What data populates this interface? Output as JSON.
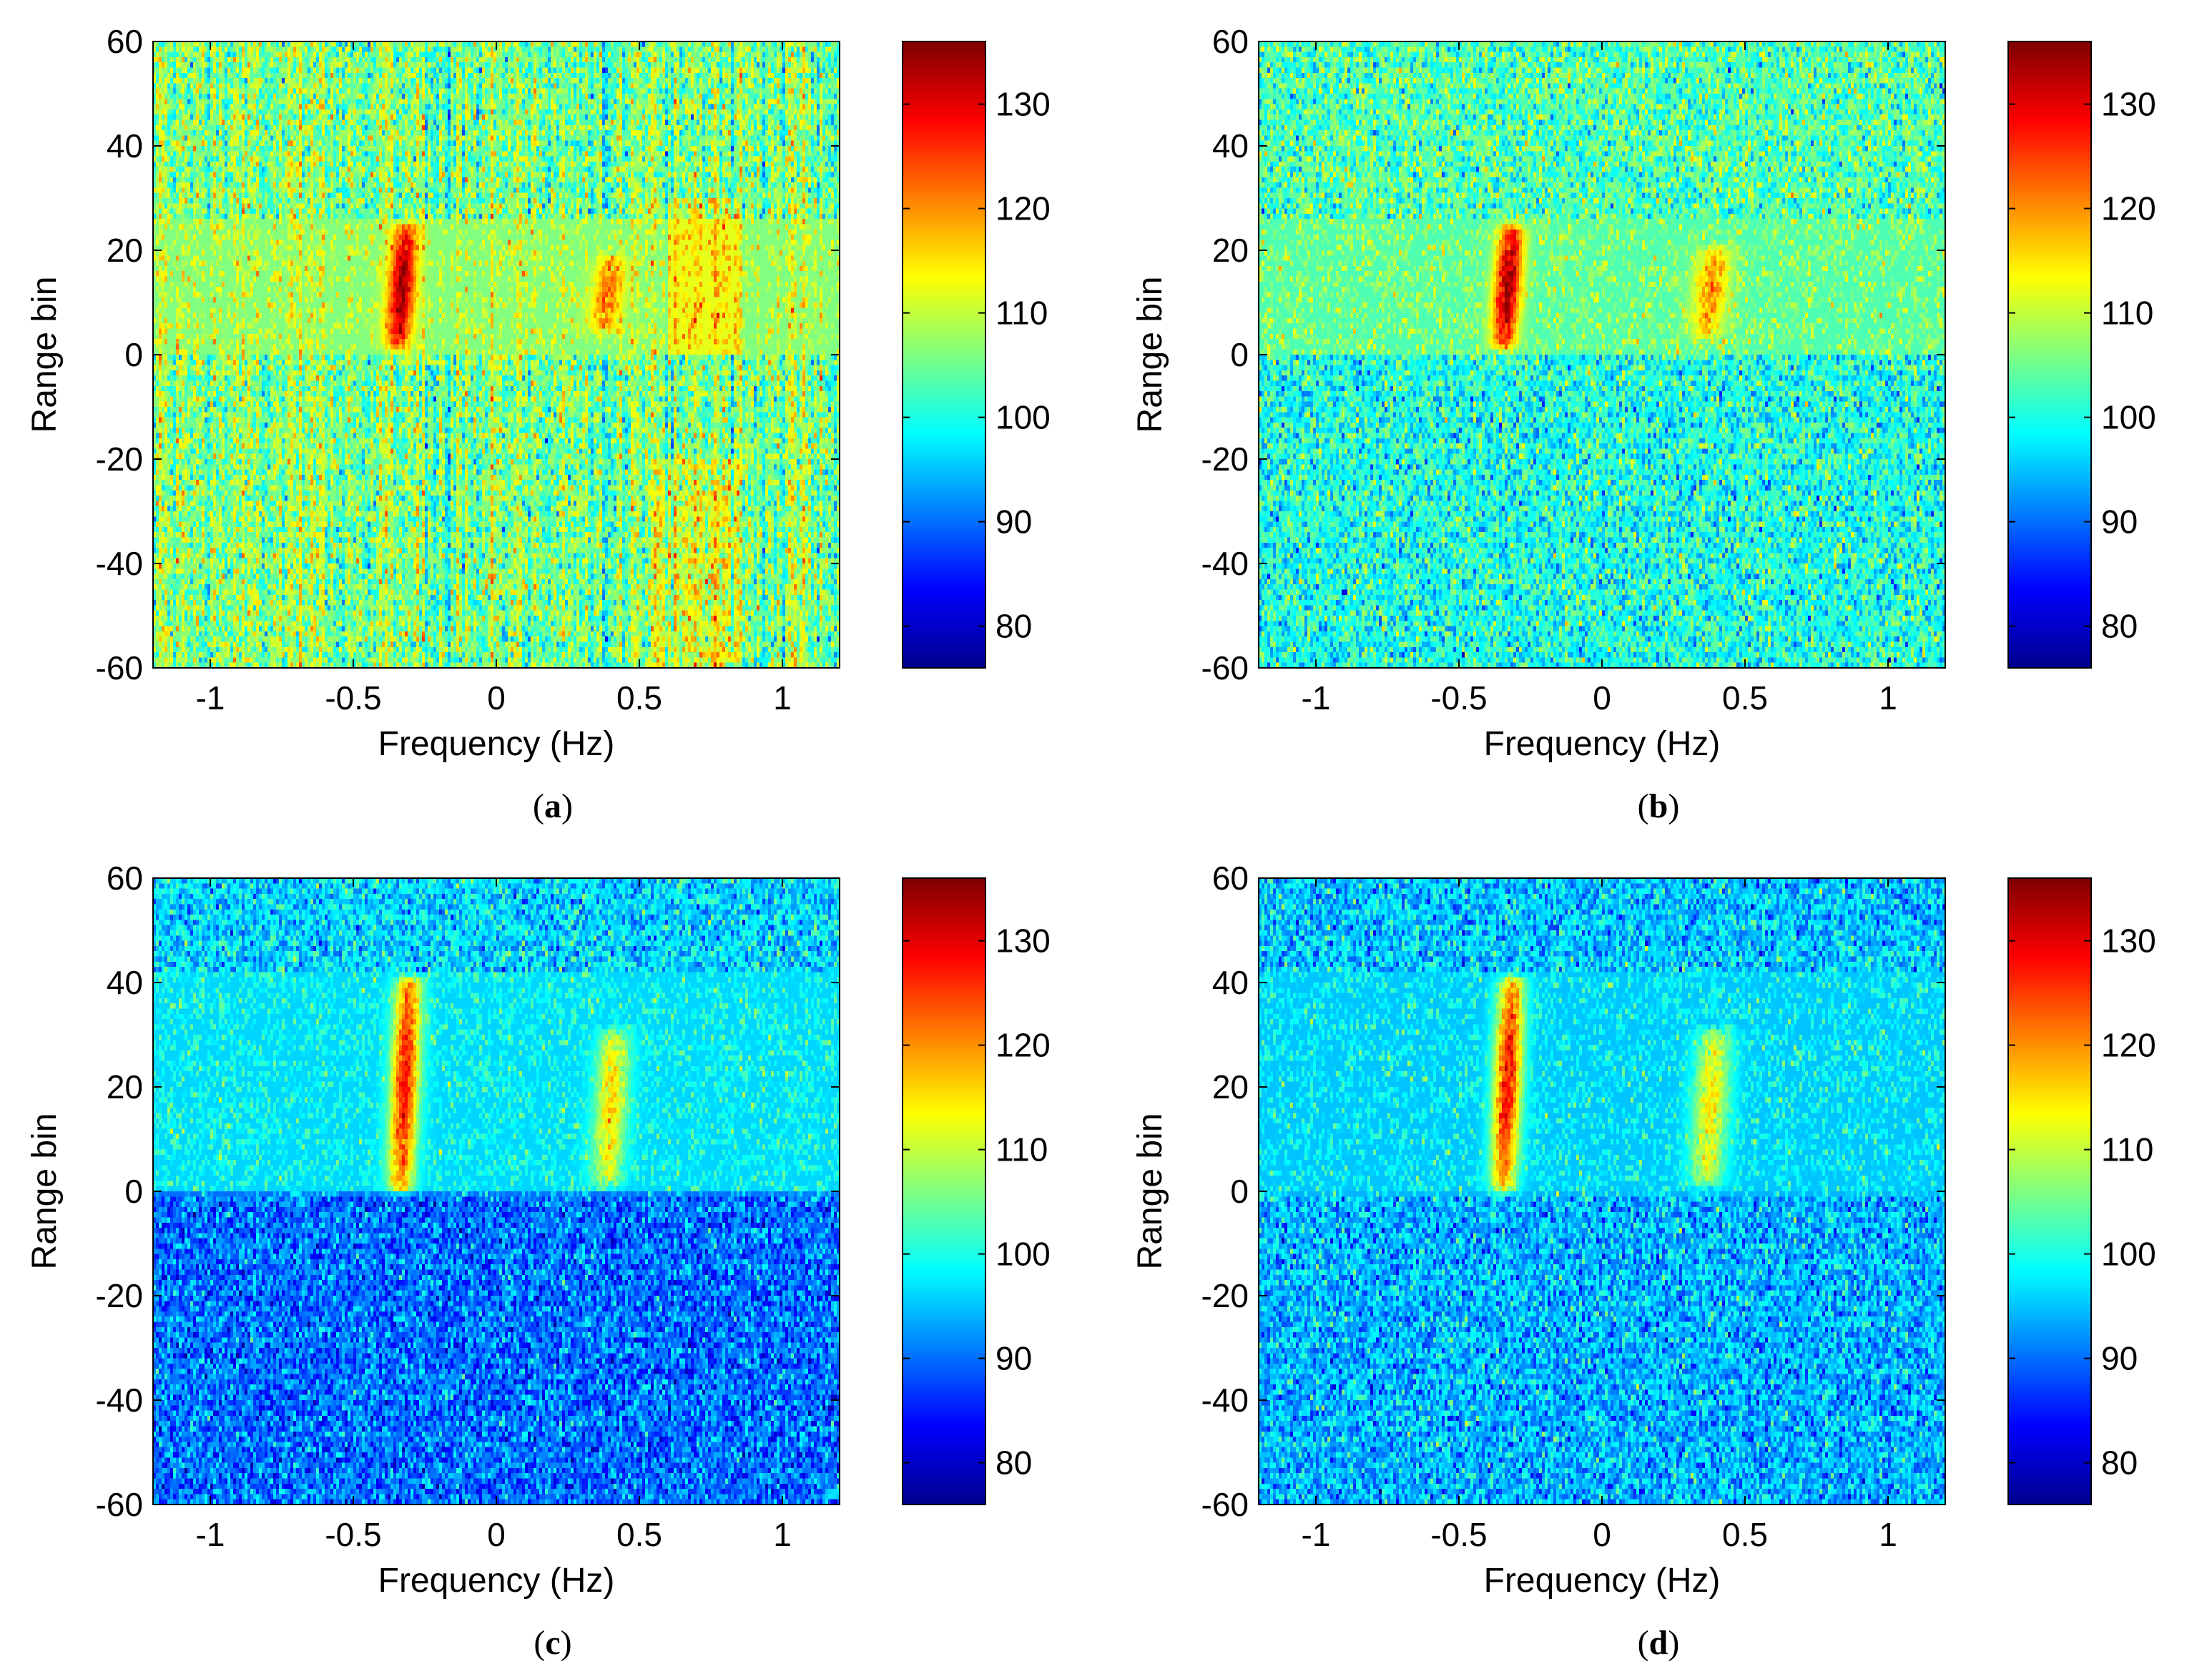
{
  "figure": {
    "colormap": "jet",
    "colors": {
      "jet_stops": [
        "#00008f",
        "#0000ff",
        "#0080ff",
        "#00ffff",
        "#80ff80",
        "#ffff00",
        "#ff8000",
        "#ff0000",
        "#800000"
      ],
      "axes_frame": "#000000"
    }
  },
  "chart_data": [
    {
      "type": "heatmap",
      "panel": "a",
      "caption_letter": "a",
      "xlabel": "Frequency (Hz)",
      "ylabel": "Range bin",
      "xlim": [
        -1.2,
        1.2
      ],
      "ylim": [
        -60,
        60
      ],
      "xticks": [
        -1,
        -0.5,
        0,
        0.5,
        1
      ],
      "xtick_labels": [
        "-1",
        "-0.5",
        "0",
        "0.5",
        "1"
      ],
      "yticks": [
        -60,
        -40,
        -20,
        0,
        20,
        40,
        60
      ],
      "ytick_labels": [
        "-60",
        "-40",
        "-20",
        "0",
        "20",
        "40",
        "60"
      ],
      "colorbar": {
        "clim": [
          76,
          136
        ],
        "ticks": [
          80,
          90,
          100,
          110,
          120,
          130
        ],
        "tick_labels": [
          "80",
          "90",
          "100",
          "110",
          "120",
          "130"
        ]
      },
      "background_level": {
        "upper": 106,
        "lower": 106
      },
      "noise_std": 5,
      "column_stripes": true,
      "bright_regions": [
        {
          "x_range": [
            0.55,
            0.85
          ],
          "y_range": [
            -60,
            -20
          ],
          "level": 112
        },
        {
          "x_range": [
            0.6,
            0.85
          ],
          "y_range": [
            0,
            30
          ],
          "level": 112
        }
      ],
      "targets": [
        {
          "freq": -0.33,
          "range_min": 2,
          "range_max": 24,
          "peak": 134,
          "width_hz": 0.035
        },
        {
          "freq": 0.39,
          "range_min": 5,
          "range_max": 18,
          "peak": 122,
          "width_hz": 0.04
        }
      ]
    },
    {
      "type": "heatmap",
      "panel": "b",
      "caption_letter": "b",
      "xlabel": "Frequency (Hz)",
      "ylabel": "Range bin",
      "xlim": [
        -1.2,
        1.2
      ],
      "ylim": [
        -60,
        60
      ],
      "xticks": [
        -1,
        -0.5,
        0,
        0.5,
        1
      ],
      "xtick_labels": [
        "-1",
        "-0.5",
        "0",
        "0.5",
        "1"
      ],
      "yticks": [
        -60,
        -40,
        -20,
        0,
        20,
        40,
        60
      ],
      "ytick_labels": [
        "-60",
        "-40",
        "-20",
        "0",
        "20",
        "40",
        "60"
      ],
      "colorbar": {
        "clim": [
          76,
          136
        ],
        "ticks": [
          80,
          90,
          100,
          110,
          120,
          130
        ],
        "tick_labels": [
          "80",
          "90",
          "100",
          "110",
          "120",
          "130"
        ]
      },
      "background_level": {
        "upper": 103,
        "lower": 100
      },
      "noise_std": 5,
      "column_stripes": false,
      "bright_regions": [],
      "targets": [
        {
          "freq": -0.33,
          "range_min": 2,
          "range_max": 24,
          "peak": 134,
          "width_hz": 0.035
        },
        {
          "freq": 0.38,
          "range_min": 4,
          "range_max": 20,
          "peak": 120,
          "width_hz": 0.045
        }
      ]
    },
    {
      "type": "heatmap",
      "panel": "c",
      "caption_letter": "c",
      "xlabel": "Frequency (Hz)",
      "ylabel": "Range bin",
      "xlim": [
        -1.2,
        1.2
      ],
      "ylim": [
        -60,
        60
      ],
      "xticks": [
        -1,
        -0.5,
        0,
        0.5,
        1
      ],
      "xtick_labels": [
        "-1",
        "-0.5",
        "0",
        "0.5",
        "1"
      ],
      "yticks": [
        -60,
        -40,
        -20,
        0,
        20,
        40,
        60
      ],
      "ytick_labels": [
        "-60",
        "-40",
        "-20",
        "0",
        "20",
        "40",
        "60"
      ],
      "colorbar": {
        "clim": [
          76,
          136
        ],
        "ticks": [
          80,
          90,
          100,
          110,
          120,
          130
        ],
        "tick_labels": [
          "80",
          "90",
          "100",
          "110",
          "120",
          "130"
        ]
      },
      "background_level": {
        "upper": 96,
        "lower": 90
      },
      "noise_std": 4.5,
      "column_stripes": false,
      "bright_regions": [],
      "targets": [
        {
          "freq": -0.32,
          "range_min": 1,
          "range_max": 40,
          "peak": 128,
          "width_hz": 0.035
        },
        {
          "freq": 0.4,
          "range_min": 2,
          "range_max": 30,
          "peak": 116,
          "width_hz": 0.04
        }
      ]
    },
    {
      "type": "heatmap",
      "panel": "d",
      "caption_letter": "d",
      "xlabel": "Frequency (Hz)",
      "ylabel": "Range bin",
      "xlim": [
        -1.2,
        1.2
      ],
      "ylim": [
        -60,
        60
      ],
      "xticks": [
        -1,
        -0.5,
        0,
        0.5,
        1
      ],
      "xtick_labels": [
        "-1",
        "-0.5",
        "0",
        "0.5",
        "1"
      ],
      "yticks": [
        -60,
        -40,
        -20,
        0,
        20,
        40,
        60
      ],
      "ytick_labels": [
        "-60",
        "-40",
        "-20",
        "0",
        "20",
        "40",
        "60"
      ],
      "colorbar": {
        "clim": [
          76,
          136
        ],
        "ticks": [
          80,
          90,
          100,
          110,
          120,
          130
        ],
        "tick_labels": [
          "80",
          "90",
          "100",
          "110",
          "120",
          "130"
        ]
      },
      "background_level": {
        "upper": 95,
        "lower": 94
      },
      "noise_std": 4.5,
      "column_stripes": false,
      "bright_regions": [],
      "targets": [
        {
          "freq": -0.33,
          "range_min": 1,
          "range_max": 40,
          "peak": 128,
          "width_hz": 0.035
        },
        {
          "freq": 0.38,
          "range_min": 2,
          "range_max": 30,
          "peak": 114,
          "width_hz": 0.045
        }
      ]
    }
  ]
}
